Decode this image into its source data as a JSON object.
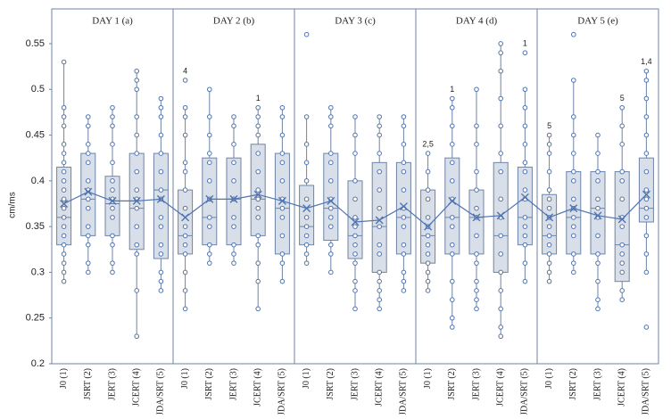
{
  "chart_data": {
    "type": "box",
    "y_label": "cm/ms",
    "ylim": [
      0.2,
      0.588
    ],
    "yticks": [
      0.2,
      0.25,
      0.3,
      0.35,
      0.4,
      0.45,
      0.5,
      0.55
    ],
    "categories": [
      "J0 (1)",
      "JSRT (2)",
      "JERT (3)",
      "JCERT (4)",
      "JDA/SRT (5)"
    ],
    "box_color": "#d9dfe8",
    "point_color": "#4f74b0",
    "mean_color": "#4f74b0",
    "panels": [
      {
        "title": "DAY 1 (a)",
        "boxes": [
          {
            "low": 0.29,
            "q1": 0.33,
            "median": 0.36,
            "q3": 0.415,
            "high": 0.53,
            "mean": 0.375,
            "points": [
              0.29,
              0.3,
              0.31,
              0.32,
              0.33,
              0.34,
              0.35,
              0.36,
              0.37,
              0.38,
              0.39,
              0.4,
              0.41,
              0.42,
              0.43,
              0.44,
              0.46,
              0.47,
              0.48,
              0.53
            ]
          },
          {
            "low": 0.3,
            "q1": 0.34,
            "median": 0.38,
            "q3": 0.43,
            "high": 0.47,
            "mean": 0.388,
            "points": [
              0.3,
              0.31,
              0.33,
              0.34,
              0.35,
              0.37,
              0.38,
              0.39,
              0.4,
              0.42,
              0.43,
              0.44,
              0.46,
              0.47
            ]
          },
          {
            "low": 0.3,
            "q1": 0.34,
            "median": 0.375,
            "q3": 0.405,
            "high": 0.48,
            "mean": 0.378,
            "points": [
              0.3,
              0.31,
              0.33,
              0.34,
              0.36,
              0.37,
              0.38,
              0.39,
              0.4,
              0.42,
              0.44,
              0.46,
              0.47,
              0.48
            ]
          },
          {
            "low": 0.23,
            "q1": 0.325,
            "median": 0.37,
            "q3": 0.43,
            "high": 0.52,
            "mean": 0.378,
            "points": [
              0.23,
              0.28,
              0.32,
              0.33,
              0.35,
              0.37,
              0.38,
              0.39,
              0.41,
              0.43,
              0.45,
              0.47,
              0.5,
              0.51,
              0.52
            ]
          },
          {
            "low": 0.28,
            "q1": 0.315,
            "median": 0.39,
            "q3": 0.43,
            "high": 0.49,
            "mean": 0.38,
            "points": [
              0.28,
              0.29,
              0.3,
              0.32,
              0.33,
              0.35,
              0.36,
              0.38,
              0.39,
              0.41,
              0.43,
              0.45,
              0.47,
              0.48,
              0.49
            ]
          }
        ]
      },
      {
        "title": "DAY 2 (b)",
        "boxes": [
          {
            "low": 0.26,
            "q1": 0.32,
            "median": 0.34,
            "q3": 0.39,
            "high": 0.48,
            "mean": 0.36,
            "annotation": "4",
            "points": [
              0.26,
              0.28,
              0.3,
              0.32,
              0.33,
              0.34,
              0.35,
              0.37,
              0.39,
              0.41,
              0.42,
              0.45,
              0.47,
              0.48,
              0.51
            ]
          },
          {
            "low": 0.31,
            "q1": 0.33,
            "median": 0.36,
            "q3": 0.425,
            "high": 0.5,
            "mean": 0.38,
            "points": [
              0.31,
              0.32,
              0.33,
              0.35,
              0.36,
              0.38,
              0.4,
              0.42,
              0.43,
              0.45,
              0.47,
              0.5
            ]
          },
          {
            "low": 0.31,
            "q1": 0.33,
            "median": 0.38,
            "q3": 0.425,
            "high": 0.47,
            "mean": 0.38,
            "points": [
              0.31,
              0.32,
              0.33,
              0.35,
              0.36,
              0.38,
              0.4,
              0.42,
              0.44,
              0.46,
              0.47
            ]
          },
          {
            "low": 0.26,
            "q1": 0.34,
            "median": 0.38,
            "q3": 0.44,
            "high": 0.48,
            "mean": 0.385,
            "annotation": "1",
            "points": [
              0.26,
              0.29,
              0.31,
              0.33,
              0.34,
              0.36,
              0.37,
              0.38,
              0.39,
              0.41,
              0.43,
              0.45,
              0.46,
              0.47,
              0.48
            ]
          },
          {
            "low": 0.29,
            "q1": 0.32,
            "median": 0.37,
            "q3": 0.43,
            "high": 0.48,
            "mean": 0.378,
            "points": [
              0.29,
              0.31,
              0.32,
              0.34,
              0.36,
              0.37,
              0.38,
              0.4,
              0.42,
              0.43,
              0.45,
              0.47,
              0.48
            ]
          }
        ]
      },
      {
        "title": "DAY 3 (c)",
        "boxes": [
          {
            "low": 0.31,
            "q1": 0.33,
            "median": 0.35,
            "q3": 0.395,
            "high": 0.47,
            "mean": 0.37,
            "points": [
              0.31,
              0.32,
              0.33,
              0.34,
              0.35,
              0.36,
              0.38,
              0.4,
              0.42,
              0.44,
              0.47,
              0.56
            ]
          },
          {
            "low": 0.3,
            "q1": 0.335,
            "median": 0.37,
            "q3": 0.43,
            "high": 0.48,
            "mean": 0.378,
            "points": [
              0.3,
              0.32,
              0.33,
              0.35,
              0.36,
              0.37,
              0.38,
              0.4,
              0.42,
              0.43,
              0.46,
              0.47,
              0.48
            ]
          },
          {
            "low": 0.26,
            "q1": 0.315,
            "median": 0.34,
            "q3": 0.4,
            "high": 0.47,
            "mean": 0.355,
            "points": [
              0.26,
              0.28,
              0.29,
              0.31,
              0.32,
              0.33,
              0.34,
              0.35,
              0.36,
              0.38,
              0.4,
              0.43,
              0.45,
              0.47
            ]
          },
          {
            "low": 0.26,
            "q1": 0.3,
            "median": 0.35,
            "q3": 0.42,
            "high": 0.47,
            "mean": 0.357,
            "points": [
              0.26,
              0.27,
              0.28,
              0.29,
              0.3,
              0.32,
              0.33,
              0.35,
              0.37,
              0.39,
              0.41,
              0.43,
              0.45,
              0.46,
              0.47
            ]
          },
          {
            "low": 0.28,
            "q1": 0.32,
            "median": 0.36,
            "q3": 0.42,
            "high": 0.47,
            "mean": 0.372,
            "points": [
              0.28,
              0.29,
              0.3,
              0.32,
              0.33,
              0.35,
              0.36,
              0.37,
              0.39,
              0.41,
              0.42,
              0.44,
              0.46,
              0.47
            ]
          }
        ]
      },
      {
        "title": "DAY 4 (d)",
        "boxes": [
          {
            "low": 0.28,
            "q1": 0.31,
            "median": 0.34,
            "q3": 0.39,
            "high": 0.43,
            "mean": 0.35,
            "annotation": "2,5",
            "points": [
              0.28,
              0.29,
              0.3,
              0.31,
              0.32,
              0.33,
              0.34,
              0.35,
              0.36,
              0.38,
              0.39,
              0.41,
              0.43
            ]
          },
          {
            "low": 0.24,
            "q1": 0.32,
            "median": 0.36,
            "q3": 0.425,
            "high": 0.49,
            "mean": 0.378,
            "annotation": "1",
            "points": [
              0.24,
              0.25,
              0.27,
              0.29,
              0.32,
              0.33,
              0.35,
              0.36,
              0.38,
              0.4,
              0.42,
              0.44,
              0.46,
              0.48,
              0.49
            ]
          },
          {
            "low": 0.26,
            "q1": 0.32,
            "median": 0.36,
            "q3": 0.39,
            "high": 0.5,
            "mean": 0.36,
            "points": [
              0.26,
              0.27,
              0.28,
              0.29,
              0.31,
              0.32,
              0.34,
              0.36,
              0.37,
              0.39,
              0.41,
              0.44,
              0.46,
              0.5
            ]
          },
          {
            "low": 0.23,
            "q1": 0.3,
            "median": 0.34,
            "q3": 0.42,
            "high": 0.55,
            "mean": 0.362,
            "points": [
              0.23,
              0.24,
              0.26,
              0.28,
              0.3,
              0.32,
              0.34,
              0.36,
              0.38,
              0.41,
              0.43,
              0.46,
              0.49,
              0.52,
              0.54,
              0.55
            ]
          },
          {
            "low": 0.29,
            "q1": 0.33,
            "median": 0.36,
            "q3": 0.415,
            "high": 0.5,
            "mean": 0.382,
            "annotation": "1",
            "points": [
              0.29,
              0.31,
              0.33,
              0.34,
              0.35,
              0.36,
              0.38,
              0.39,
              0.41,
              0.42,
              0.44,
              0.46,
              0.48,
              0.5,
              0.54
            ]
          }
        ]
      },
      {
        "title": "DAY 5 (e)",
        "boxes": [
          {
            "low": 0.29,
            "q1": 0.32,
            "median": 0.34,
            "q3": 0.385,
            "high": 0.45,
            "mean": 0.36,
            "annotation": "5",
            "points": [
              0.29,
              0.3,
              0.31,
              0.32,
              0.33,
              0.34,
              0.35,
              0.36,
              0.37,
              0.38,
              0.39,
              0.41,
              0.43,
              0.44,
              0.45
            ]
          },
          {
            "low": 0.3,
            "q1": 0.32,
            "median": 0.36,
            "q3": 0.41,
            "high": 0.51,
            "mean": 0.37,
            "points": [
              0.3,
              0.31,
              0.32,
              0.34,
              0.35,
              0.36,
              0.37,
              0.38,
              0.4,
              0.41,
              0.43,
              0.45,
              0.47,
              0.51,
              0.56
            ]
          },
          {
            "low": 0.26,
            "q1": 0.32,
            "median": 0.37,
            "q3": 0.41,
            "high": 0.45,
            "mean": 0.362,
            "points": [
              0.26,
              0.27,
              0.29,
              0.31,
              0.32,
              0.34,
              0.36,
              0.37,
              0.38,
              0.4,
              0.41,
              0.43,
              0.45
            ]
          },
          {
            "low": 0.27,
            "q1": 0.29,
            "median": 0.33,
            "q3": 0.41,
            "high": 0.48,
            "mean": 0.358,
            "annotation": "5",
            "points": [
              0.27,
              0.28,
              0.3,
              0.31,
              0.32,
              0.33,
              0.35,
              0.36,
              0.38,
              0.4,
              0.41,
              0.44,
              0.46,
              0.48
            ]
          },
          {
            "low": 0.3,
            "q1": 0.355,
            "median": 0.37,
            "q3": 0.425,
            "high": 0.52,
            "mean": 0.385,
            "annotation": "1,4",
            "points": [
              0.24,
              0.3,
              0.32,
              0.34,
              0.36,
              0.37,
              0.38,
              0.39,
              0.41,
              0.43,
              0.45,
              0.47,
              0.49,
              0.51,
              0.52
            ]
          }
        ]
      }
    ]
  }
}
